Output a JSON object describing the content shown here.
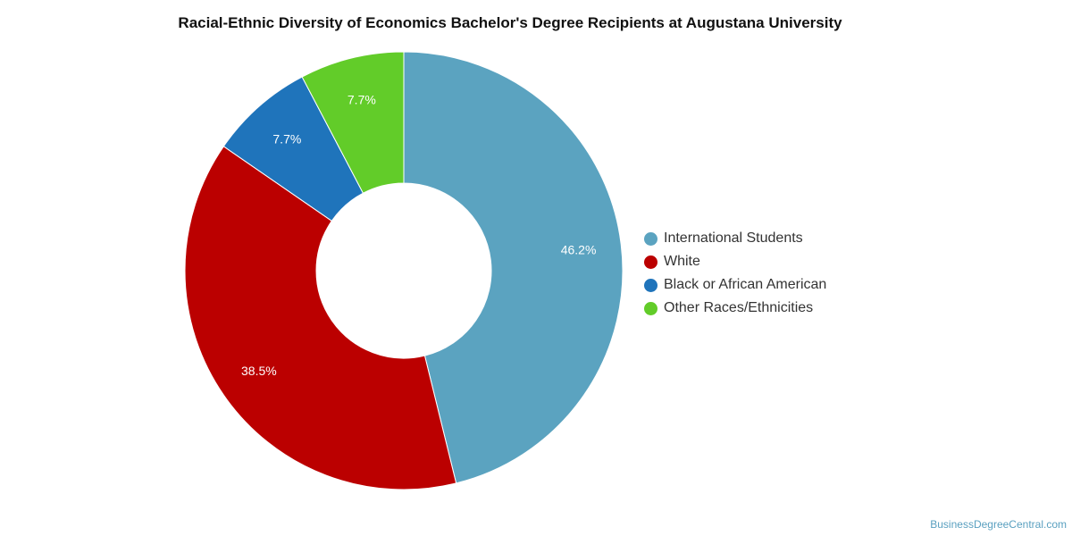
{
  "chart_data": {
    "type": "pie",
    "title": "Racial-Ethnic Diversity of Economics Bachelor's Degree Recipients at Augustana University",
    "slices": [
      {
        "label": "International Students",
        "value": 46.2,
        "display": "46.2%",
        "color": "#5ba3c0"
      },
      {
        "label": "White",
        "value": 38.5,
        "display": "38.5%",
        "color": "#bb0000"
      },
      {
        "label": "Black or African American",
        "value": 7.7,
        "display": "7.7%",
        "color": "#1f74bb"
      },
      {
        "label": "Other Races/Ethnicities",
        "value": 7.7,
        "display": "7.7%",
        "color": "#62cc29"
      }
    ],
    "legend_position": "right"
  },
  "watermark": "BusinessDegreeCentral.com"
}
